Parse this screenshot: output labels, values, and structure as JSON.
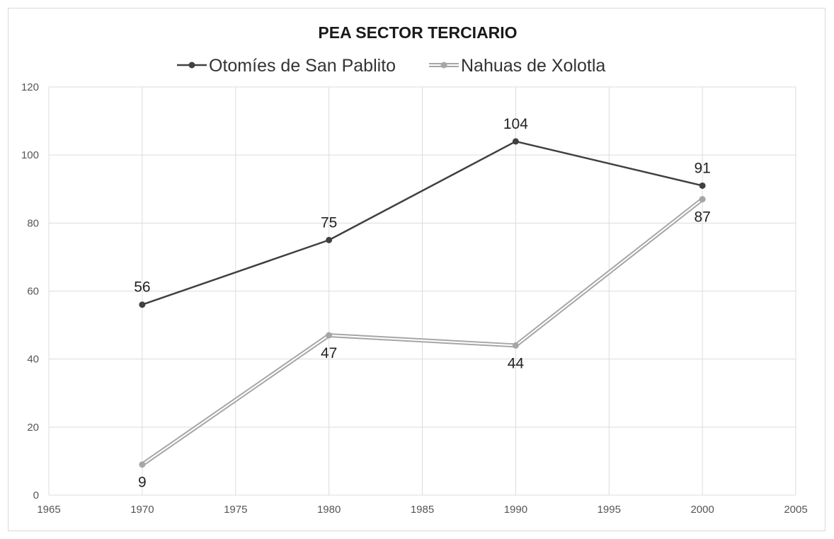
{
  "chart_data": {
    "type": "line",
    "title": "PEA SECTOR TERCIARIO",
    "xlabel": "",
    "ylabel": "",
    "xlim": [
      1965,
      2005
    ],
    "ylim": [
      0,
      120
    ],
    "x_ticks": [
      1965,
      1970,
      1975,
      1980,
      1985,
      1990,
      1995,
      2000,
      2005
    ],
    "y_ticks": [
      0,
      20,
      40,
      60,
      80,
      100,
      120
    ],
    "grid": true,
    "legend_position": "top",
    "series": [
      {
        "name": "Otomíes de San Pablito",
        "x": [
          1970,
          1980,
          1990,
          2000
        ],
        "values": [
          56,
          75,
          104,
          91
        ],
        "labels": [
          "56",
          "75",
          "104",
          "91"
        ],
        "label_position": "above",
        "color": "#404040",
        "style": "solid-dark"
      },
      {
        "name": "Nahuas de Xolotla",
        "x": [
          1970,
          1980,
          1990,
          2000
        ],
        "values": [
          9,
          47,
          44,
          87
        ],
        "labels": [
          "9",
          "47",
          "44",
          "87"
        ],
        "label_position": "below",
        "color": "#a6a6a6",
        "style": "double-light"
      }
    ]
  }
}
